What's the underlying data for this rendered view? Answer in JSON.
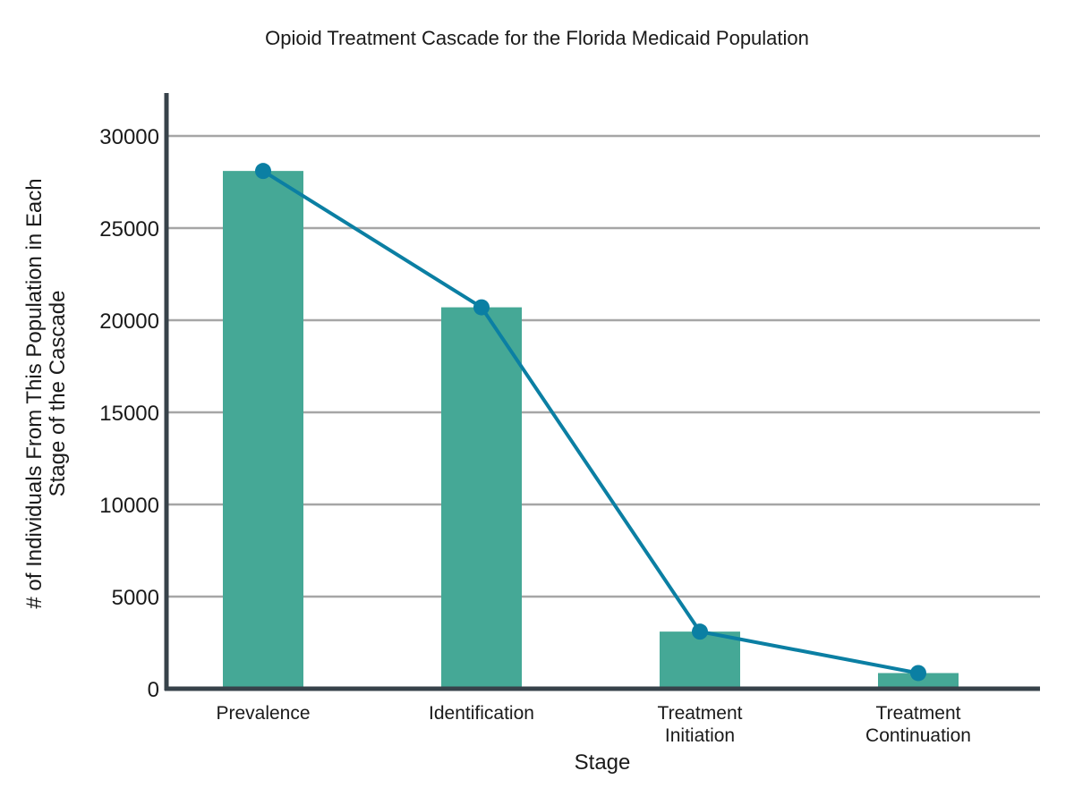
{
  "chart_data": {
    "type": "bar",
    "title": "Opioid Treatment Cascade for the Florida Medicaid Population",
    "xlabel": "Stage",
    "ylabel_lines": [
      "# of Individuals From This Population in Each",
      "Stage of the Cascade"
    ],
    "categories": [
      [
        "Prevalence"
      ],
      [
        "Identification"
      ],
      [
        "Treatment",
        "Initiation"
      ],
      [
        "Treatment",
        "Continuation"
      ]
    ],
    "values": [
      28100,
      20700,
      3100,
      850
    ],
    "line_overlay": true,
    "ylim": [
      0,
      32000
    ],
    "yticks": [
      0,
      5000,
      10000,
      15000,
      20000,
      25000,
      30000
    ],
    "grid": true,
    "colors": {
      "bar": "#45a896",
      "line": "#0b7fa3",
      "grid": "#a6a6a6",
      "axis": "#37424a"
    }
  }
}
